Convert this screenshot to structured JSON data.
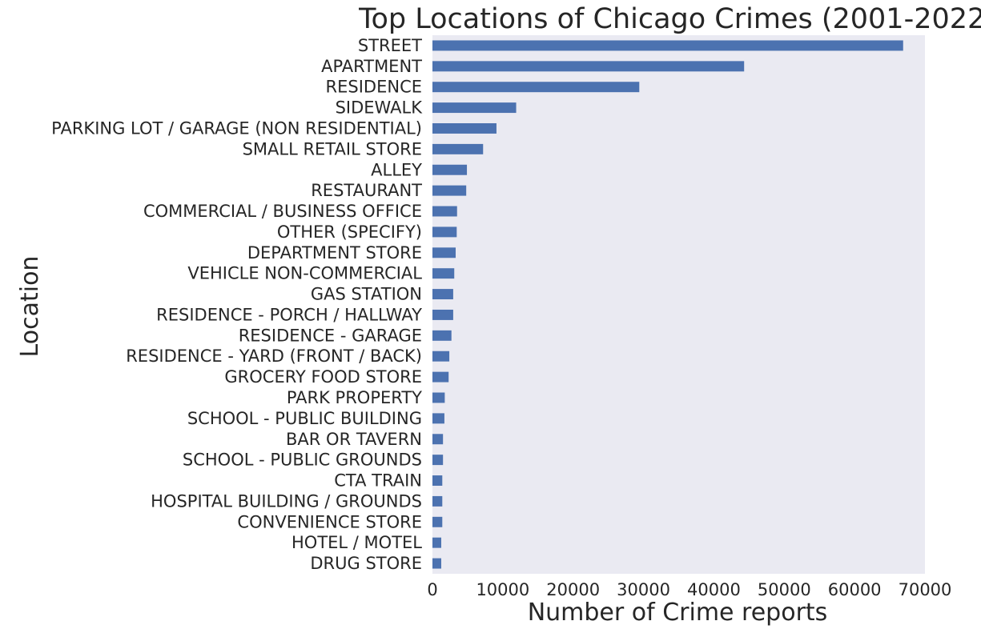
{
  "chart_data": {
    "type": "bar",
    "orientation": "horizontal",
    "title": "Top Locations of Chicago Crimes (2001-2022)",
    "xlabel": "Number of Crime reports",
    "ylabel": "Location",
    "xlim": [
      0,
      70000
    ],
    "xticks": [
      0,
      10000,
      20000,
      30000,
      40000,
      50000,
      60000,
      70000
    ],
    "grid": false,
    "bar_color": "#4c72b0",
    "background_color": "#eaeaf2",
    "categories": [
      "STREET",
      "APARTMENT",
      "RESIDENCE",
      "SIDEWALK",
      "PARKING LOT / GARAGE (NON RESIDENTIAL)",
      "SMALL RETAIL STORE",
      "ALLEY",
      "RESTAURANT",
      "COMMERCIAL / BUSINESS OFFICE",
      "OTHER (SPECIFY)",
      "DEPARTMENT STORE",
      "VEHICLE NON-COMMERCIAL",
      "GAS STATION",
      "RESIDENCE - PORCH / HALLWAY",
      "RESIDENCE - GARAGE",
      "RESIDENCE - YARD (FRONT / BACK)",
      "GROCERY FOOD STORE",
      "PARK PROPERTY",
      "SCHOOL - PUBLIC BUILDING",
      "BAR OR TAVERN",
      "SCHOOL - PUBLIC GROUNDS",
      "CTA TRAIN",
      "HOSPITAL BUILDING / GROUNDS",
      "CONVENIENCE STORE",
      "HOTEL / MOTEL",
      "DRUG STORE"
    ],
    "values": [
      66900,
      44300,
      29400,
      11900,
      9100,
      7200,
      4900,
      4800,
      3500,
      3450,
      3300,
      3100,
      2950,
      2950,
      2700,
      2400,
      2300,
      1750,
      1700,
      1500,
      1500,
      1400,
      1400,
      1400,
      1250,
      1250
    ]
  }
}
